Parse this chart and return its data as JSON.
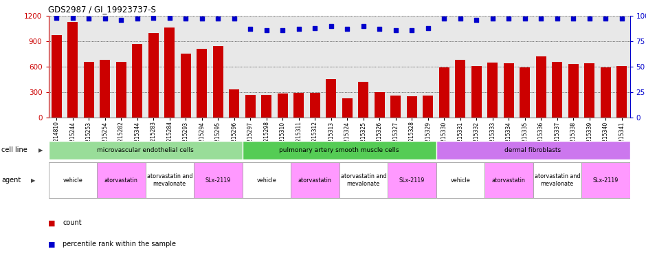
{
  "title": "GDS2987 / GI_19923737-S",
  "samples": [
    "GSM214810",
    "GSM215244",
    "GSM215253",
    "GSM215254",
    "GSM215282",
    "GSM215344",
    "GSM215283",
    "GSM215284",
    "GSM215293",
    "GSM215294",
    "GSM215295",
    "GSM215296",
    "GSM215297",
    "GSM215298",
    "GSM215310",
    "GSM215311",
    "GSM215312",
    "GSM215313",
    "GSM215324",
    "GSM215325",
    "GSM215326",
    "GSM215327",
    "GSM215328",
    "GSM215329",
    "GSM215330",
    "GSM215331",
    "GSM215332",
    "GSM215333",
    "GSM215334",
    "GSM215335",
    "GSM215336",
    "GSM215337",
    "GSM215338",
    "GSM215339",
    "GSM215340",
    "GSM215341"
  ],
  "counts": [
    975,
    1130,
    660,
    680,
    660,
    870,
    1000,
    1060,
    750,
    810,
    840,
    335,
    270,
    270,
    285,
    290,
    290,
    450,
    230,
    420,
    300,
    260,
    250,
    260,
    590,
    680,
    610,
    650,
    640,
    590,
    720,
    660,
    630,
    640,
    595,
    610
  ],
  "percentiles": [
    98,
    98,
    97,
    97,
    96,
    97,
    98,
    98,
    97,
    97,
    97,
    97,
    87,
    86,
    86,
    87,
    88,
    90,
    87,
    90,
    87,
    86,
    86,
    88,
    97,
    97,
    96,
    97,
    97,
    97,
    97,
    97,
    97,
    97,
    97,
    97
  ],
  "ylim_left": [
    0,
    1200
  ],
  "ylim_right": [
    0,
    100
  ],
  "yticks_left": [
    0,
    300,
    600,
    900,
    1200
  ],
  "yticks_right": [
    0,
    25,
    50,
    75,
    100
  ],
  "bar_color": "#cc0000",
  "dot_color": "#0000cc",
  "bg_color": "#e8e8e8",
  "cell_line_colors": [
    "#99dd99",
    "#55cc55",
    "#cc77ee"
  ],
  "cell_line_groups": [
    {
      "label": "microvascular endothelial cells",
      "start": 0,
      "end": 12
    },
    {
      "label": "pulmonary artery smooth muscle cells",
      "start": 12,
      "end": 24
    },
    {
      "label": "dermal fibroblasts",
      "start": 24,
      "end": 36
    }
  ],
  "agent_groups": [
    {
      "label": "vehicle",
      "start": 0,
      "end": 3,
      "color": "#ffffff"
    },
    {
      "label": "atorvastatin",
      "start": 3,
      "end": 6,
      "color": "#ff99ff"
    },
    {
      "label": "atorvastatin and\nmevalonate",
      "start": 6,
      "end": 9,
      "color": "#ffffff"
    },
    {
      "label": "SLx-2119",
      "start": 9,
      "end": 12,
      "color": "#ff99ff"
    },
    {
      "label": "vehicle",
      "start": 12,
      "end": 15,
      "color": "#ffffff"
    },
    {
      "label": "atorvastatin",
      "start": 15,
      "end": 18,
      "color": "#ff99ff"
    },
    {
      "label": "atorvastatin and\nmevalonate",
      "start": 18,
      "end": 21,
      "color": "#ffffff"
    },
    {
      "label": "SLx-2119",
      "start": 21,
      "end": 24,
      "color": "#ff99ff"
    },
    {
      "label": "vehicle",
      "start": 24,
      "end": 27,
      "color": "#ffffff"
    },
    {
      "label": "atorvastatin",
      "start": 27,
      "end": 30,
      "color": "#ff99ff"
    },
    {
      "label": "atorvastatin and\nmevalonate",
      "start": 30,
      "end": 33,
      "color": "#ffffff"
    },
    {
      "label": "SLx-2119",
      "start": 33,
      "end": 36,
      "color": "#ff99ff"
    }
  ],
  "legend_count_label": "count",
  "legend_perc_label": "percentile rank within the sample",
  "cell_line_row_label": "cell line",
  "agent_row_label": "agent"
}
